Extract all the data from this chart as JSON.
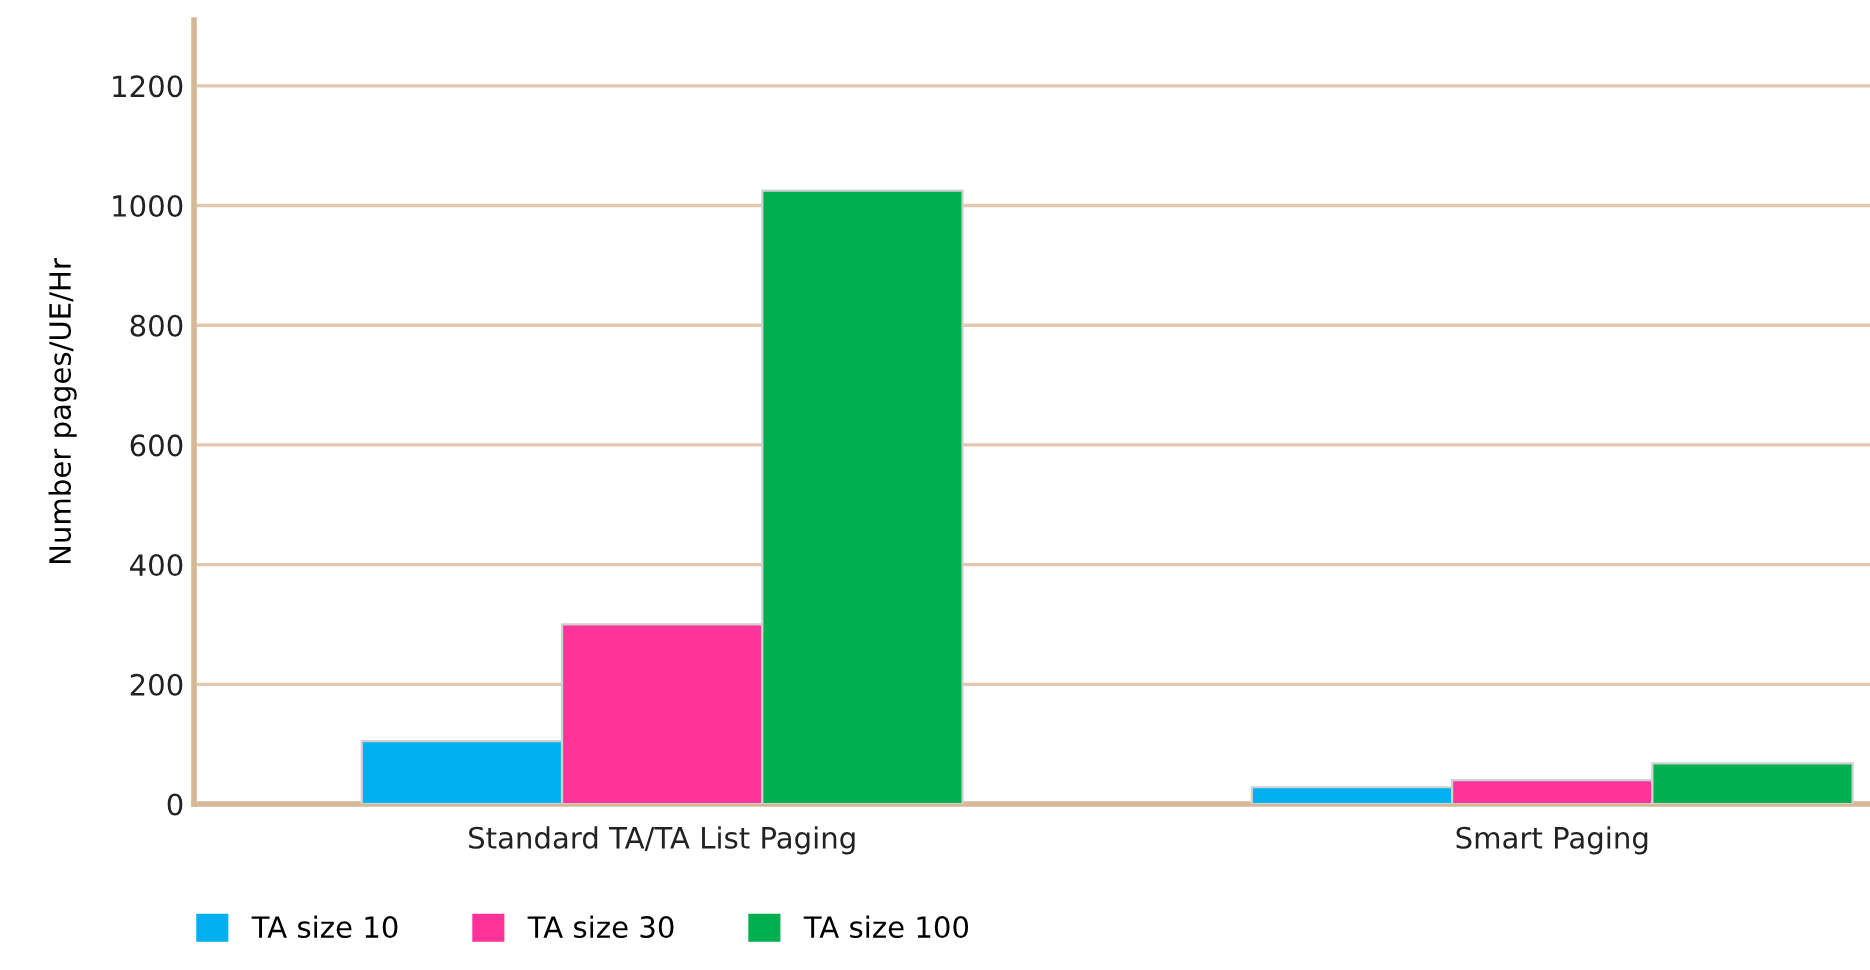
{
  "chart_data": {
    "type": "bar",
    "ylabel": "Number pages/UE/Hr",
    "categories": [
      "Standard TA/TA List Paging",
      "Smart Paging"
    ],
    "series": [
      {
        "name": "TA size 10",
        "color": "#00b0f0",
        "values": [
          105,
          28
        ]
      },
      {
        "name": "TA size 30",
        "color": "#ff3399",
        "values": [
          300,
          40
        ]
      },
      {
        "name": "TA size 100",
        "color": "#00b050",
        "values": [
          1025,
          68
        ]
      }
    ],
    "ylim": [
      0,
      1310
    ],
    "yticks": [
      0,
      200,
      400,
      600,
      800,
      1000,
      1200
    ],
    "grid": "y",
    "legend": "bottom"
  }
}
